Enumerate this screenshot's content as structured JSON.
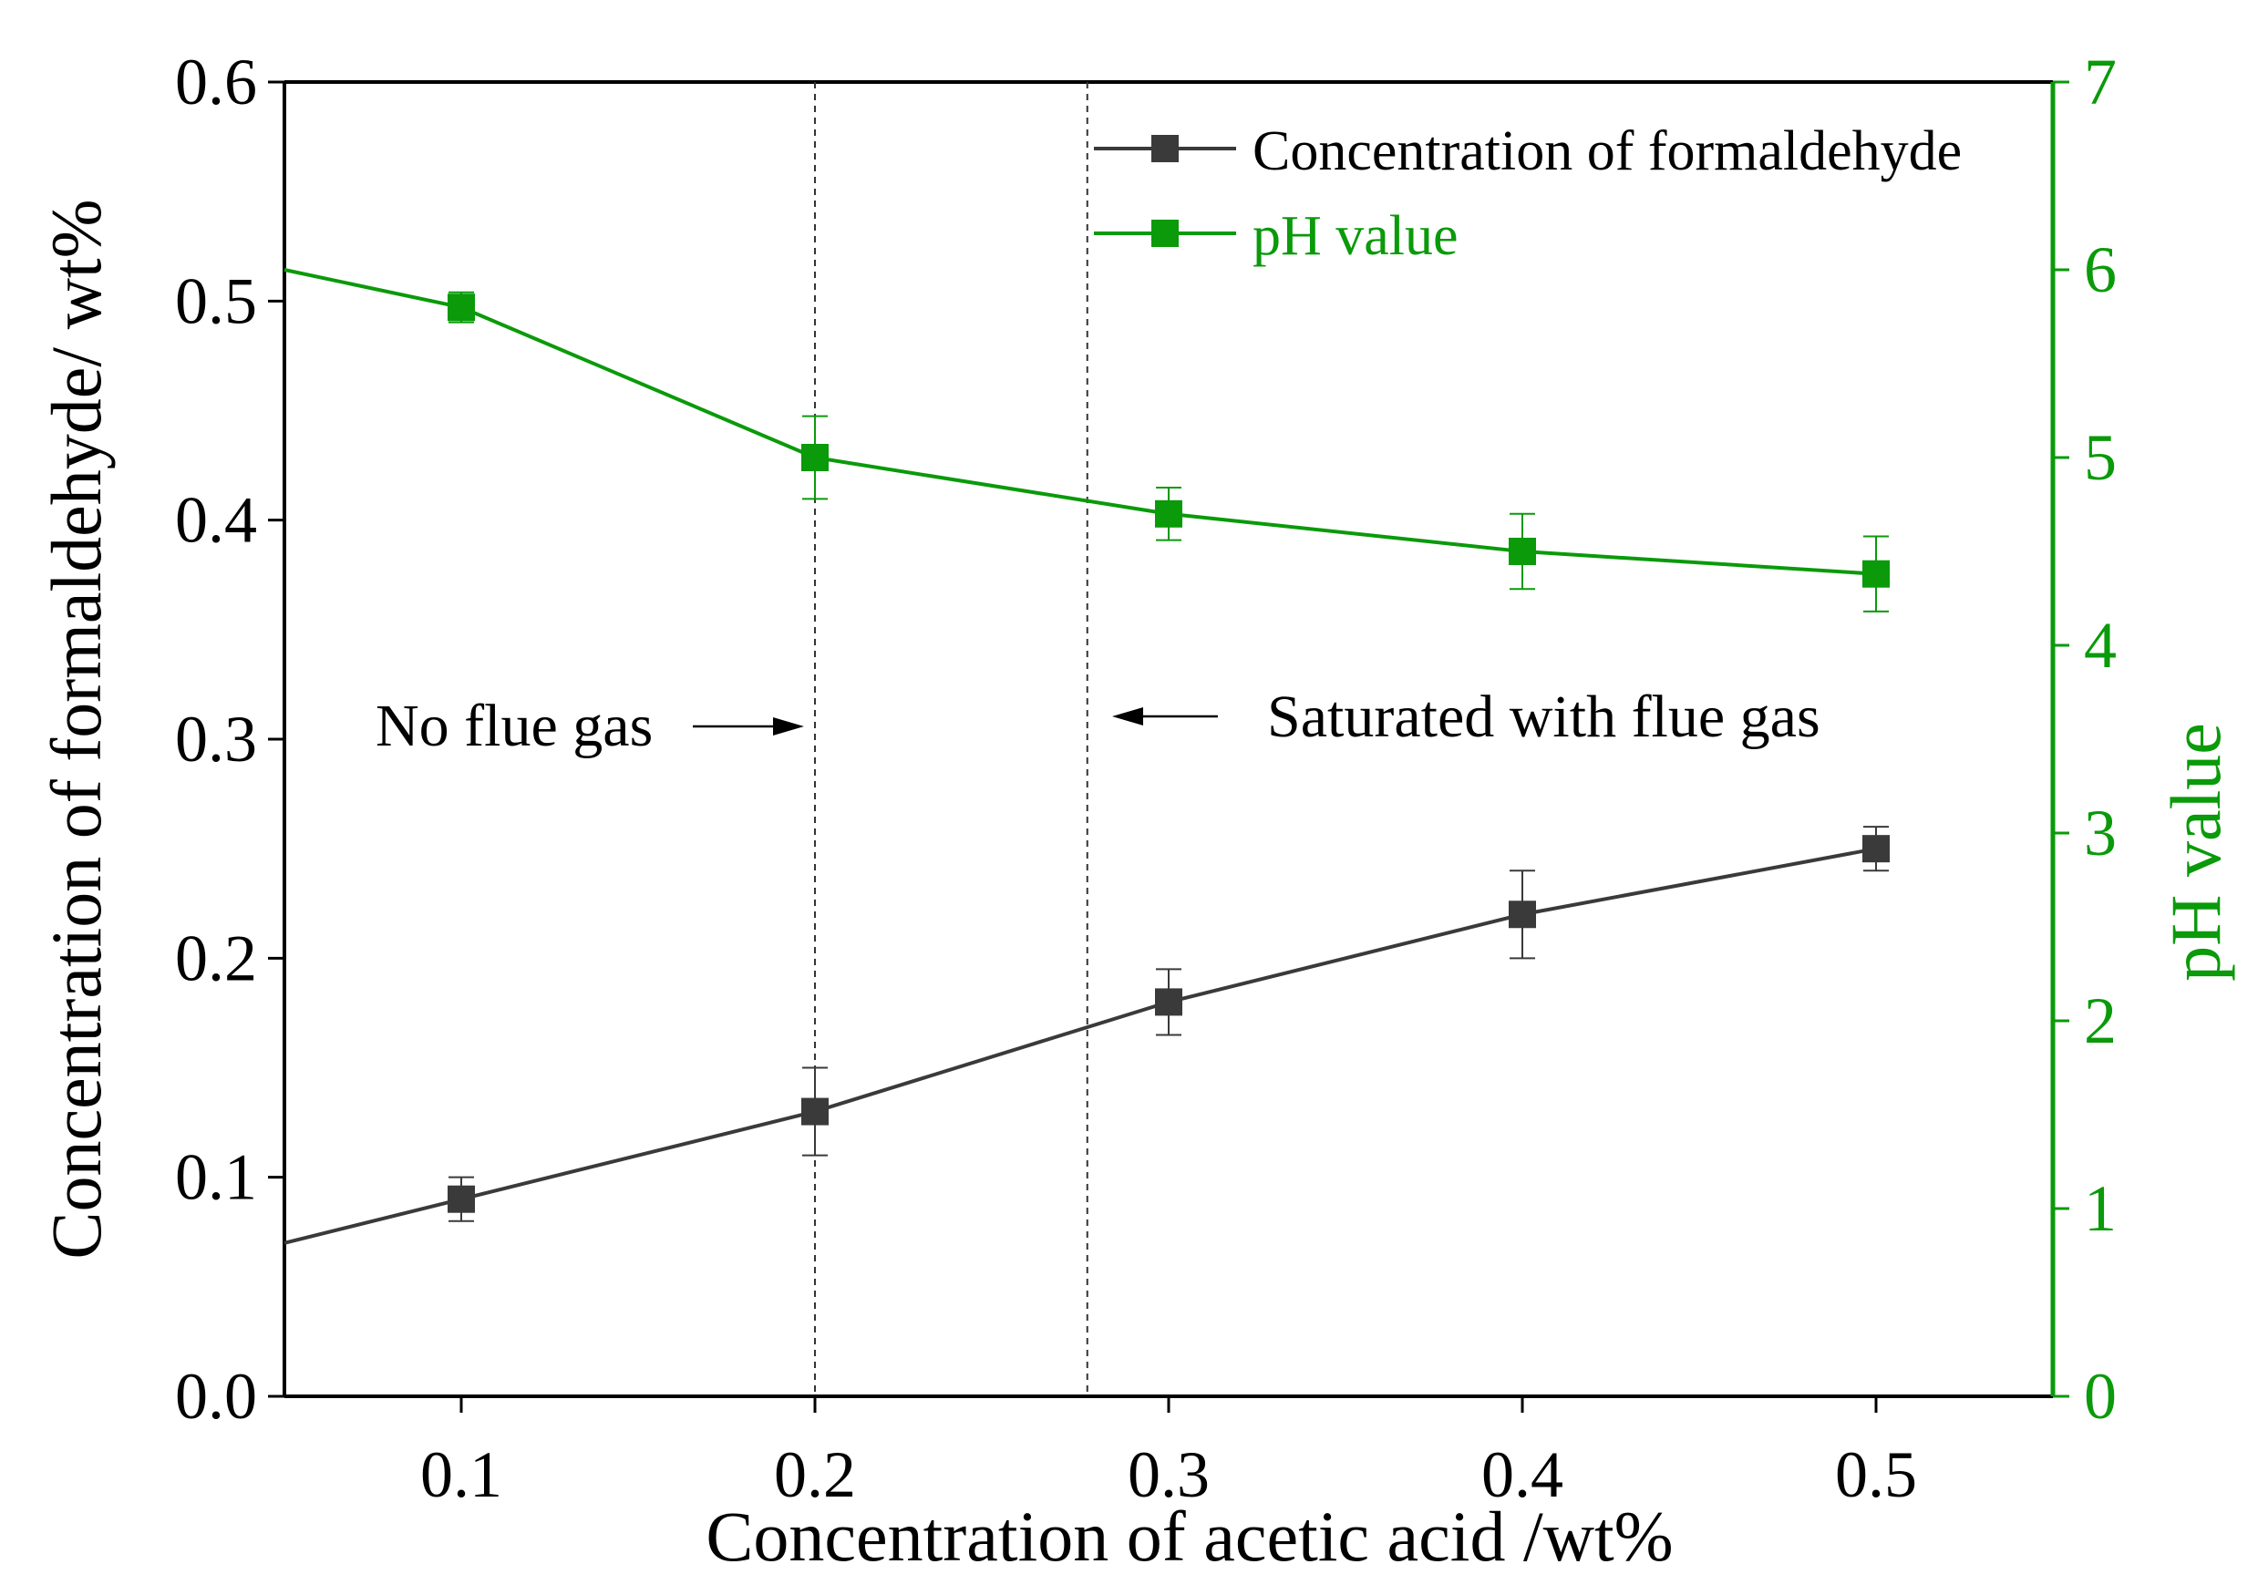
{
  "chart_data": {
    "type": "line",
    "xlabel": "Concentration of acetic acid /wt%",
    "ylabel": "Concentration of formaldehyde/ wt%",
    "y2label": "pH value",
    "xlim": [
      0.05,
      0.55
    ],
    "ylim": [
      0,
      0.6
    ],
    "y2lim": [
      0,
      7
    ],
    "xticks": [
      "0.1",
      "0.2",
      "0.3",
      "0.4",
      "0.5"
    ],
    "xtick_values": [
      0.1,
      0.2,
      0.3,
      0.4,
      0.5
    ],
    "yticks": [
      "0.0",
      "0.1",
      "0.2",
      "0.3",
      "0.4",
      "0.5",
      "0.6"
    ],
    "ytick_values": [
      0,
      0.1,
      0.2,
      0.3,
      0.4,
      0.5,
      0.6
    ],
    "y2ticks": [
      "0",
      "1",
      "2",
      "3",
      "4",
      "5",
      "6",
      "7"
    ],
    "y2tick_values": [
      0,
      1,
      2,
      3,
      4,
      5,
      6,
      7
    ],
    "series": [
      {
        "name": "Concentration of formaldehyde",
        "axis": "left",
        "color": "#3a3a3a",
        "x": [
          0.1,
          0.2,
          0.3,
          0.4,
          0.5
        ],
        "values": [
          0.09,
          0.13,
          0.18,
          0.22,
          0.25
        ],
        "errors": [
          0.01,
          0.02,
          0.015,
          0.02,
          0.01
        ],
        "line_start": [
          0.05,
          0.07
        ]
      },
      {
        "name": "pH value",
        "axis": "right",
        "color": "#0a9a0a",
        "x": [
          0.1,
          0.2,
          0.3,
          0.4,
          0.5
        ],
        "values": [
          5.8,
          5.0,
          4.7,
          4.5,
          4.38
        ],
        "errors": [
          0.08,
          0.22,
          0.14,
          0.2,
          0.2
        ],
        "line_start": [
          0.05,
          6.0
        ]
      }
    ],
    "vlines": [
      0.2,
      0.277
    ],
    "annotations": [
      {
        "text": "No flue gas",
        "arrow": "right",
        "x_at": 0.2,
        "y_at": 0.305
      },
      {
        "text": "Saturated with flue gas",
        "arrow": "left",
        "x_at": 0.277,
        "y_at": 0.309
      }
    ],
    "legend_position": "top-right",
    "grid": false
  }
}
